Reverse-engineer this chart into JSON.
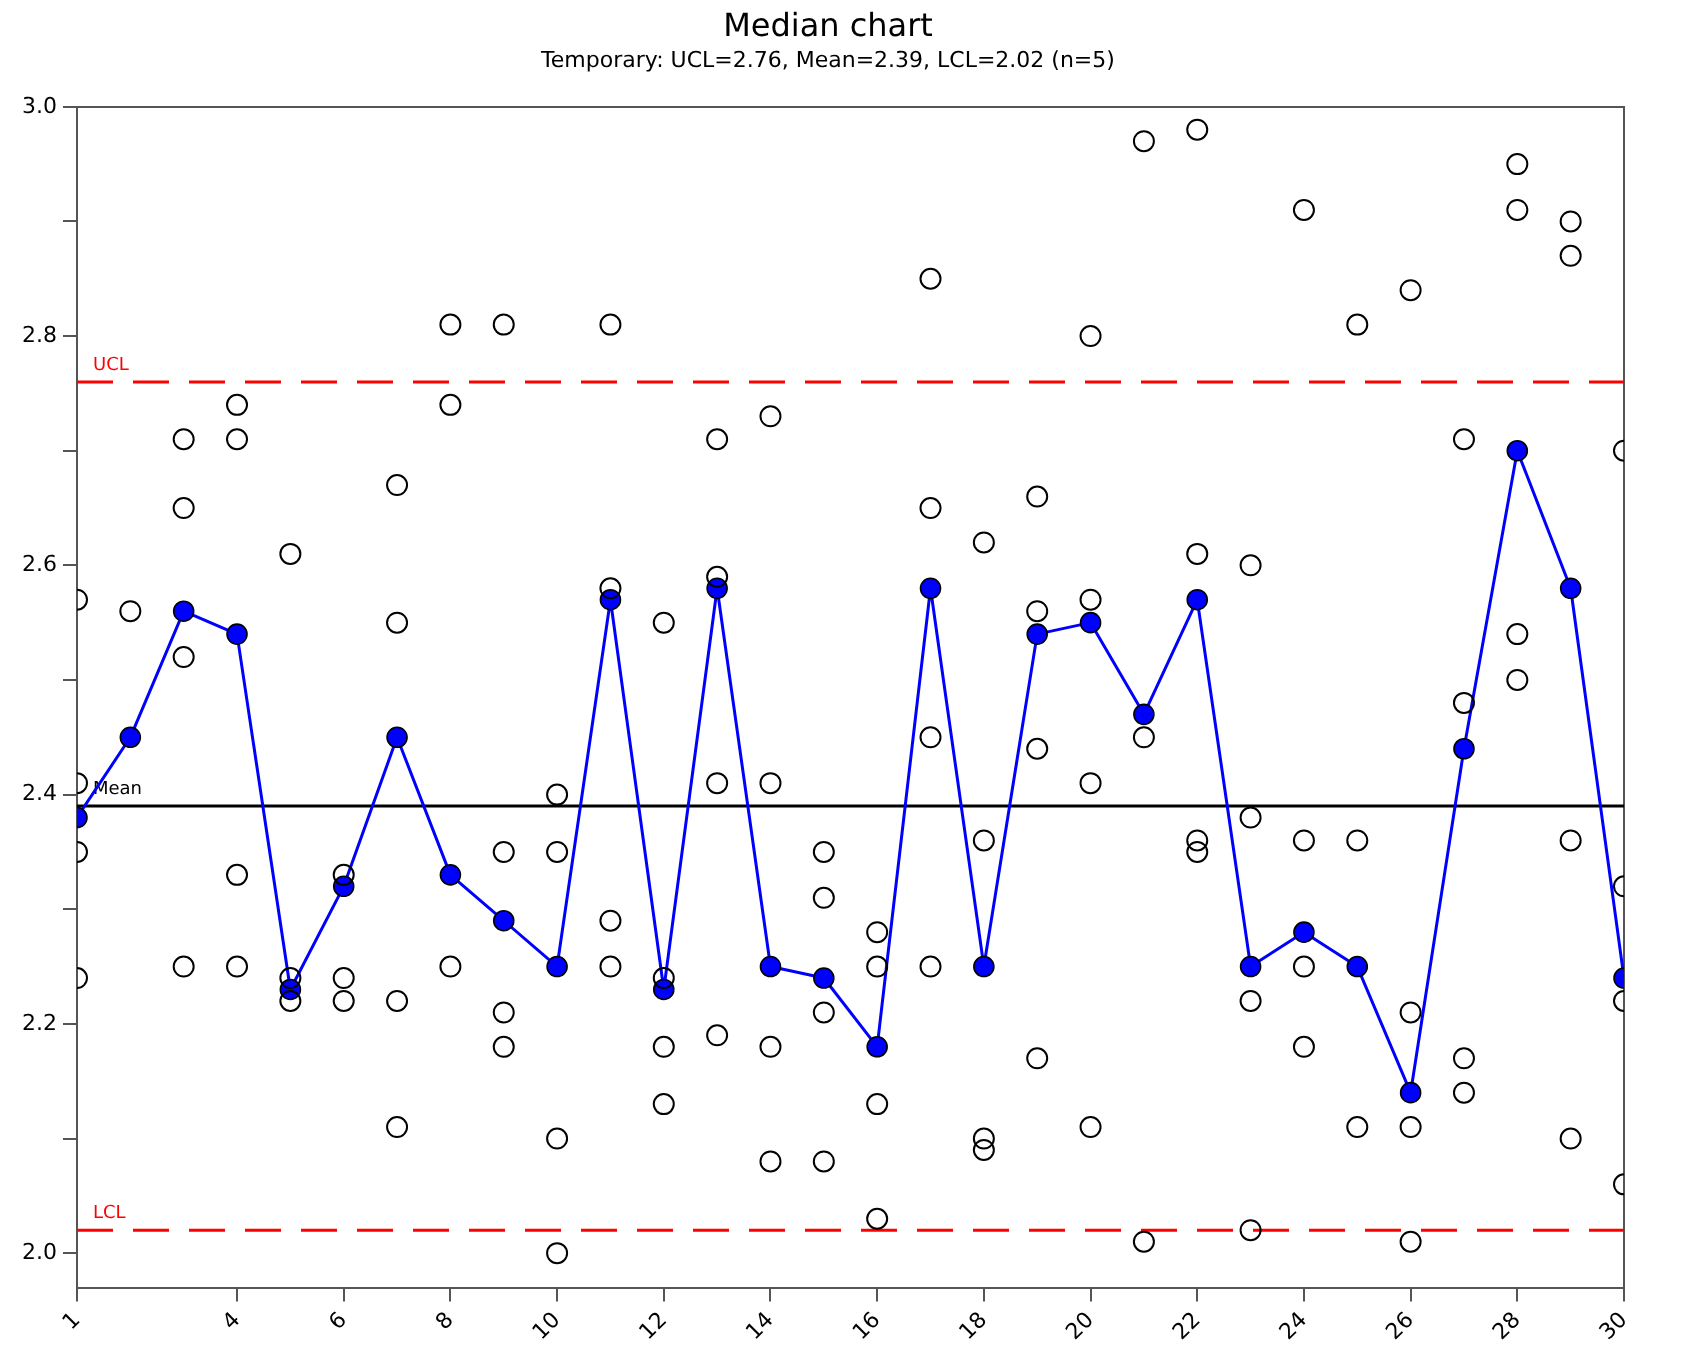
{
  "chart_data": {
    "type": "scatter",
    "title": "Median chart",
    "subtitle": "Temporary: UCL=2.76, Mean=2.39, LCL=2.02 (n=5)",
    "xlim": [
      1,
      30
    ],
    "xticks": [
      1,
      4,
      6,
      8,
      10,
      12,
      14,
      16,
      18,
      20,
      22,
      24,
      26,
      28,
      30
    ],
    "ylim": [
      1.97,
      3.0
    ],
    "yticks": [
      {
        "value": 2,
        "label": "2.0"
      },
      {
        "value": 2.1,
        "label": null
      },
      2.2,
      {
        "value": 2.3,
        "label": null
      },
      2.4,
      {
        "value": 2.5,
        "label": null
      },
      2.6,
      {
        "value": 2.7,
        "label": null
      },
      2.8,
      {
        "value": 2.9,
        "label": null
      },
      {
        "value": 3,
        "label": "3.0"
      }
    ],
    "grid": false,
    "legend": false,
    "series": [
      {
        "marker": "circle",
        "color": "#000000",
        "x": [
          1,
          1,
          1,
          1,
          2,
          3,
          3,
          3,
          3,
          4,
          4,
          4,
          4,
          5,
          5,
          5,
          6,
          6,
          6,
          7,
          7,
          7,
          7,
          8,
          8,
          8,
          9,
          9,
          9,
          9,
          10,
          10,
          10,
          10,
          11,
          11,
          11,
          11,
          12,
          12,
          12,
          12,
          13,
          13,
          13,
          13,
          14,
          14,
          14,
          14,
          15,
          15,
          15,
          15,
          16,
          16,
          16,
          16,
          17,
          17,
          17,
          17,
          18,
          18,
          18,
          18,
          19,
          19,
          19,
          19,
          20,
          20,
          20,
          20,
          21,
          21,
          21,
          22,
          22,
          22,
          22,
          23,
          23,
          23,
          23,
          24,
          24,
          24,
          24,
          25,
          25,
          25,
          26,
          26,
          26,
          26,
          27,
          27,
          27,
          27,
          28,
          28,
          28,
          28,
          29,
          29,
          29,
          29,
          30,
          30,
          30,
          30
        ],
        "values": [
          2.57,
          2.41,
          2.35,
          2.24,
          2.56,
          2.71,
          2.65,
          2.52,
          2.25,
          2.74,
          2.71,
          2.33,
          2.25,
          2.61,
          2.24,
          2.22,
          2.33,
          2.24,
          2.22,
          2.67,
          2.55,
          2.22,
          2.11,
          2.81,
          2.74,
          2.25,
          2.81,
          2.35,
          2.21,
          2.18,
          2.4,
          2.35,
          2.1,
          2.0,
          2.81,
          2.58,
          2.29,
          2.25,
          2.55,
          2.24,
          2.18,
          2.13,
          2.71,
          2.59,
          2.41,
          2.19,
          2.73,
          2.41,
          2.18,
          2.08,
          2.35,
          2.31,
          2.21,
          2.08,
          2.28,
          2.25,
          2.13,
          2.03,
          2.85,
          2.65,
          2.45,
          2.25,
          2.62,
          2.36,
          2.1,
          2.09,
          2.66,
          2.56,
          2.44,
          2.17,
          2.8,
          2.57,
          2.41,
          2.11,
          2.97,
          2.45,
          2.01,
          2.98,
          2.61,
          2.36,
          2.35,
          2.6,
          2.38,
          2.22,
          2.02,
          2.91,
          2.36,
          2.25,
          2.18,
          2.81,
          2.36,
          2.11,
          2.84,
          2.21,
          2.11,
          2.01,
          2.71,
          2.48,
          2.17,
          2.14,
          2.95,
          2.91,
          2.54,
          2.5,
          2.9,
          2.87,
          2.36,
          2.1,
          2.7,
          2.32,
          2.22,
          2.06
        ]
      },
      {
        "type": "line",
        "marker": "circle",
        "line_style": "solid",
        "color": "#0000ff",
        "x": [
          1,
          2,
          3,
          4,
          5,
          6,
          7,
          8,
          9,
          10,
          11,
          12,
          13,
          14,
          15,
          16,
          17,
          18,
          19,
          20,
          21,
          22,
          23,
          24,
          25,
          26,
          27,
          28,
          29,
          30
        ],
        "values": [
          2.38,
          2.45,
          2.56,
          2.54,
          2.23,
          2.32,
          2.45,
          2.33,
          2.29,
          2.25,
          2.57,
          2.23,
          2.58,
          2.25,
          2.24,
          2.18,
          2.58,
          2.25,
          2.54,
          2.55,
          2.47,
          2.57,
          2.25,
          2.28,
          2.25,
          2.14,
          2.44,
          2.7,
          2.58,
          2.24
        ]
      }
    ],
    "ref_lines": [
      {
        "axis": "y",
        "value": 2.76,
        "label": "UCL",
        "color": "#ff0000",
        "line_style": "dashed"
      },
      {
        "axis": "y",
        "value": 2.39,
        "label": "Mean",
        "color": "#000000",
        "line_style": "solid"
      },
      {
        "axis": "y",
        "value": 2.02,
        "label": "LCL",
        "color": "#ff0000",
        "line_style": "dashed"
      }
    ]
  }
}
